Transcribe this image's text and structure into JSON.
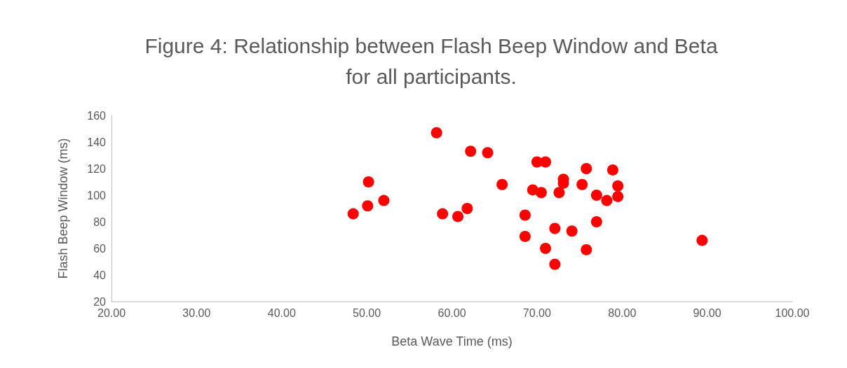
{
  "chart_data": {
    "type": "scatter",
    "title": "Figure 4: Relationship between Flash Beep Window and Beta\nfor all participants.",
    "xlabel": "Beta Wave Time (ms)",
    "ylabel": "Flash Beep Window (ms)",
    "x": [
      48.4,
      50.2,
      50.1,
      52.0,
      58.2,
      58.9,
      60.7,
      61.8,
      62.2,
      64.2,
      65.9,
      68.6,
      68.6,
      69.5,
      70.0,
      71.0,
      70.5,
      71.0,
      72.1,
      72.1,
      72.6,
      73.1,
      73.1,
      74.1,
      75.3,
      75.8,
      75.8,
      77.0,
      77.0,
      78.2,
      78.9,
      79.5,
      79.5,
      89.4
    ],
    "values": [
      86,
      110,
      92,
      96,
      147,
      86,
      84,
      90,
      133,
      132,
      108,
      85,
      69,
      104,
      125,
      125,
      102,
      60,
      75,
      48,
      102,
      112,
      109,
      73,
      108,
      120,
      59,
      100,
      80,
      96,
      119,
      107,
      99,
      66
    ],
    "color": "#ff0000",
    "marker": "circle",
    "grid": false,
    "xlim": [
      20,
      100
    ],
    "xticks": [
      {
        "value": 20,
        "label": "20.00"
      },
      {
        "value": 30,
        "label": "30.00"
      },
      {
        "value": 40,
        "label": "40.00"
      },
      {
        "value": 50,
        "label": "50.00"
      },
      {
        "value": 60,
        "label": "60.00"
      },
      {
        "value": 70,
        "label": "70.00"
      },
      {
        "value": 80,
        "label": "80.00"
      },
      {
        "value": 90,
        "label": "90.00"
      },
      {
        "value": 100,
        "label": "100.00"
      }
    ],
    "ylim": [
      20,
      160
    ],
    "yticks": [
      20,
      40,
      60,
      80,
      100,
      120,
      140,
      160
    ]
  }
}
